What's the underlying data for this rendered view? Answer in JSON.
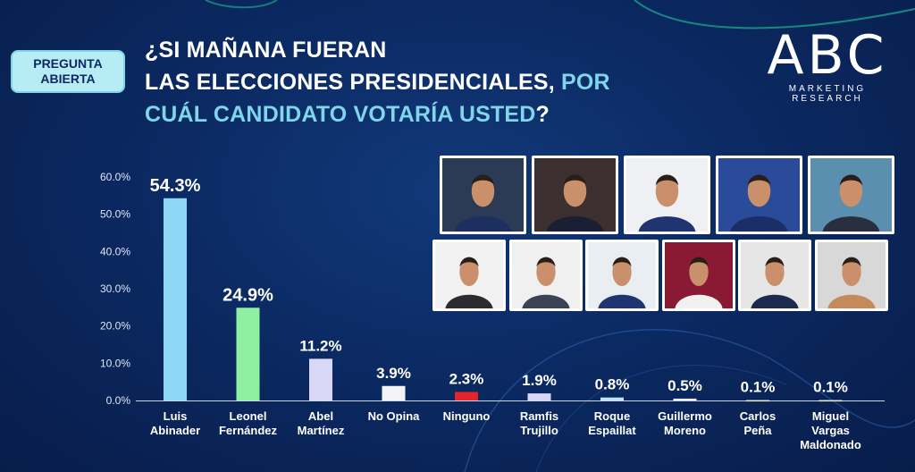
{
  "badge": {
    "line1": "PREGUNTA",
    "line2": "ABIERTA"
  },
  "title": {
    "line1": "¿SI MAÑANA FUERAN",
    "line2": "LAS ELECCIONES PRESIDENCIALES,",
    "line2_accent": "POR",
    "line3_accent": "CUÁL CANDIDATO VOTARÍA USTED",
    "line3_end": "?"
  },
  "logo": {
    "letters": "ABC",
    "sub1": "MARKETING",
    "sub2": "RESEARCH"
  },
  "chart_data": {
    "type": "bar",
    "categories": [
      [
        "Luis",
        "Abinader"
      ],
      [
        "Leonel",
        "Fernández"
      ],
      [
        "Abel",
        "Martínez"
      ],
      [
        "No Opina"
      ],
      [
        "Ninguno"
      ],
      [
        "Ramfis",
        "Trujillo"
      ],
      [
        "Roque",
        "Espaillat"
      ],
      [
        "Guillermo",
        "Moreno"
      ],
      [
        "Carlos",
        "Peña"
      ],
      [
        "Miguel",
        "Vargas",
        "Maldonado"
      ]
    ],
    "values": [
      54.3,
      24.9,
      11.2,
      3.9,
      2.3,
      1.9,
      0.8,
      0.5,
      0.1,
      0.1
    ],
    "value_labels": [
      "54.3%",
      "24.9%",
      "11.2%",
      "3.9%",
      "2.3%",
      "1.9%",
      "0.8%",
      "0.5%",
      "0.1%",
      "0.1%"
    ],
    "bar_colors": [
      "#8fd8f5",
      "#8ef0a0",
      "#d9d6f6",
      "#f4f4f8",
      "#e3242b",
      "#d9d6f6",
      "#bfe7f7",
      "#eef0f5",
      "#eef0f5",
      "#eef0f5"
    ],
    "yticks": [
      "60.0%",
      "50.0%",
      "40.0%",
      "30.0%",
      "20.0%",
      "10.0%",
      "0.0%"
    ],
    "ylim": [
      0,
      60
    ],
    "grid": false
  },
  "photos": {
    "row1": [
      "candidate-photo-1",
      "candidate-photo-2",
      "candidate-photo-3",
      "candidate-photo-4",
      "candidate-photo-5"
    ],
    "row2": [
      "candidate-photo-6",
      "candidate-photo-7",
      "candidate-photo-8",
      "candidate-photo-9",
      "candidate-photo-10",
      "candidate-photo-11"
    ]
  },
  "colors": {
    "background": "#0b2a63",
    "accent": "#7fd6ea"
  }
}
